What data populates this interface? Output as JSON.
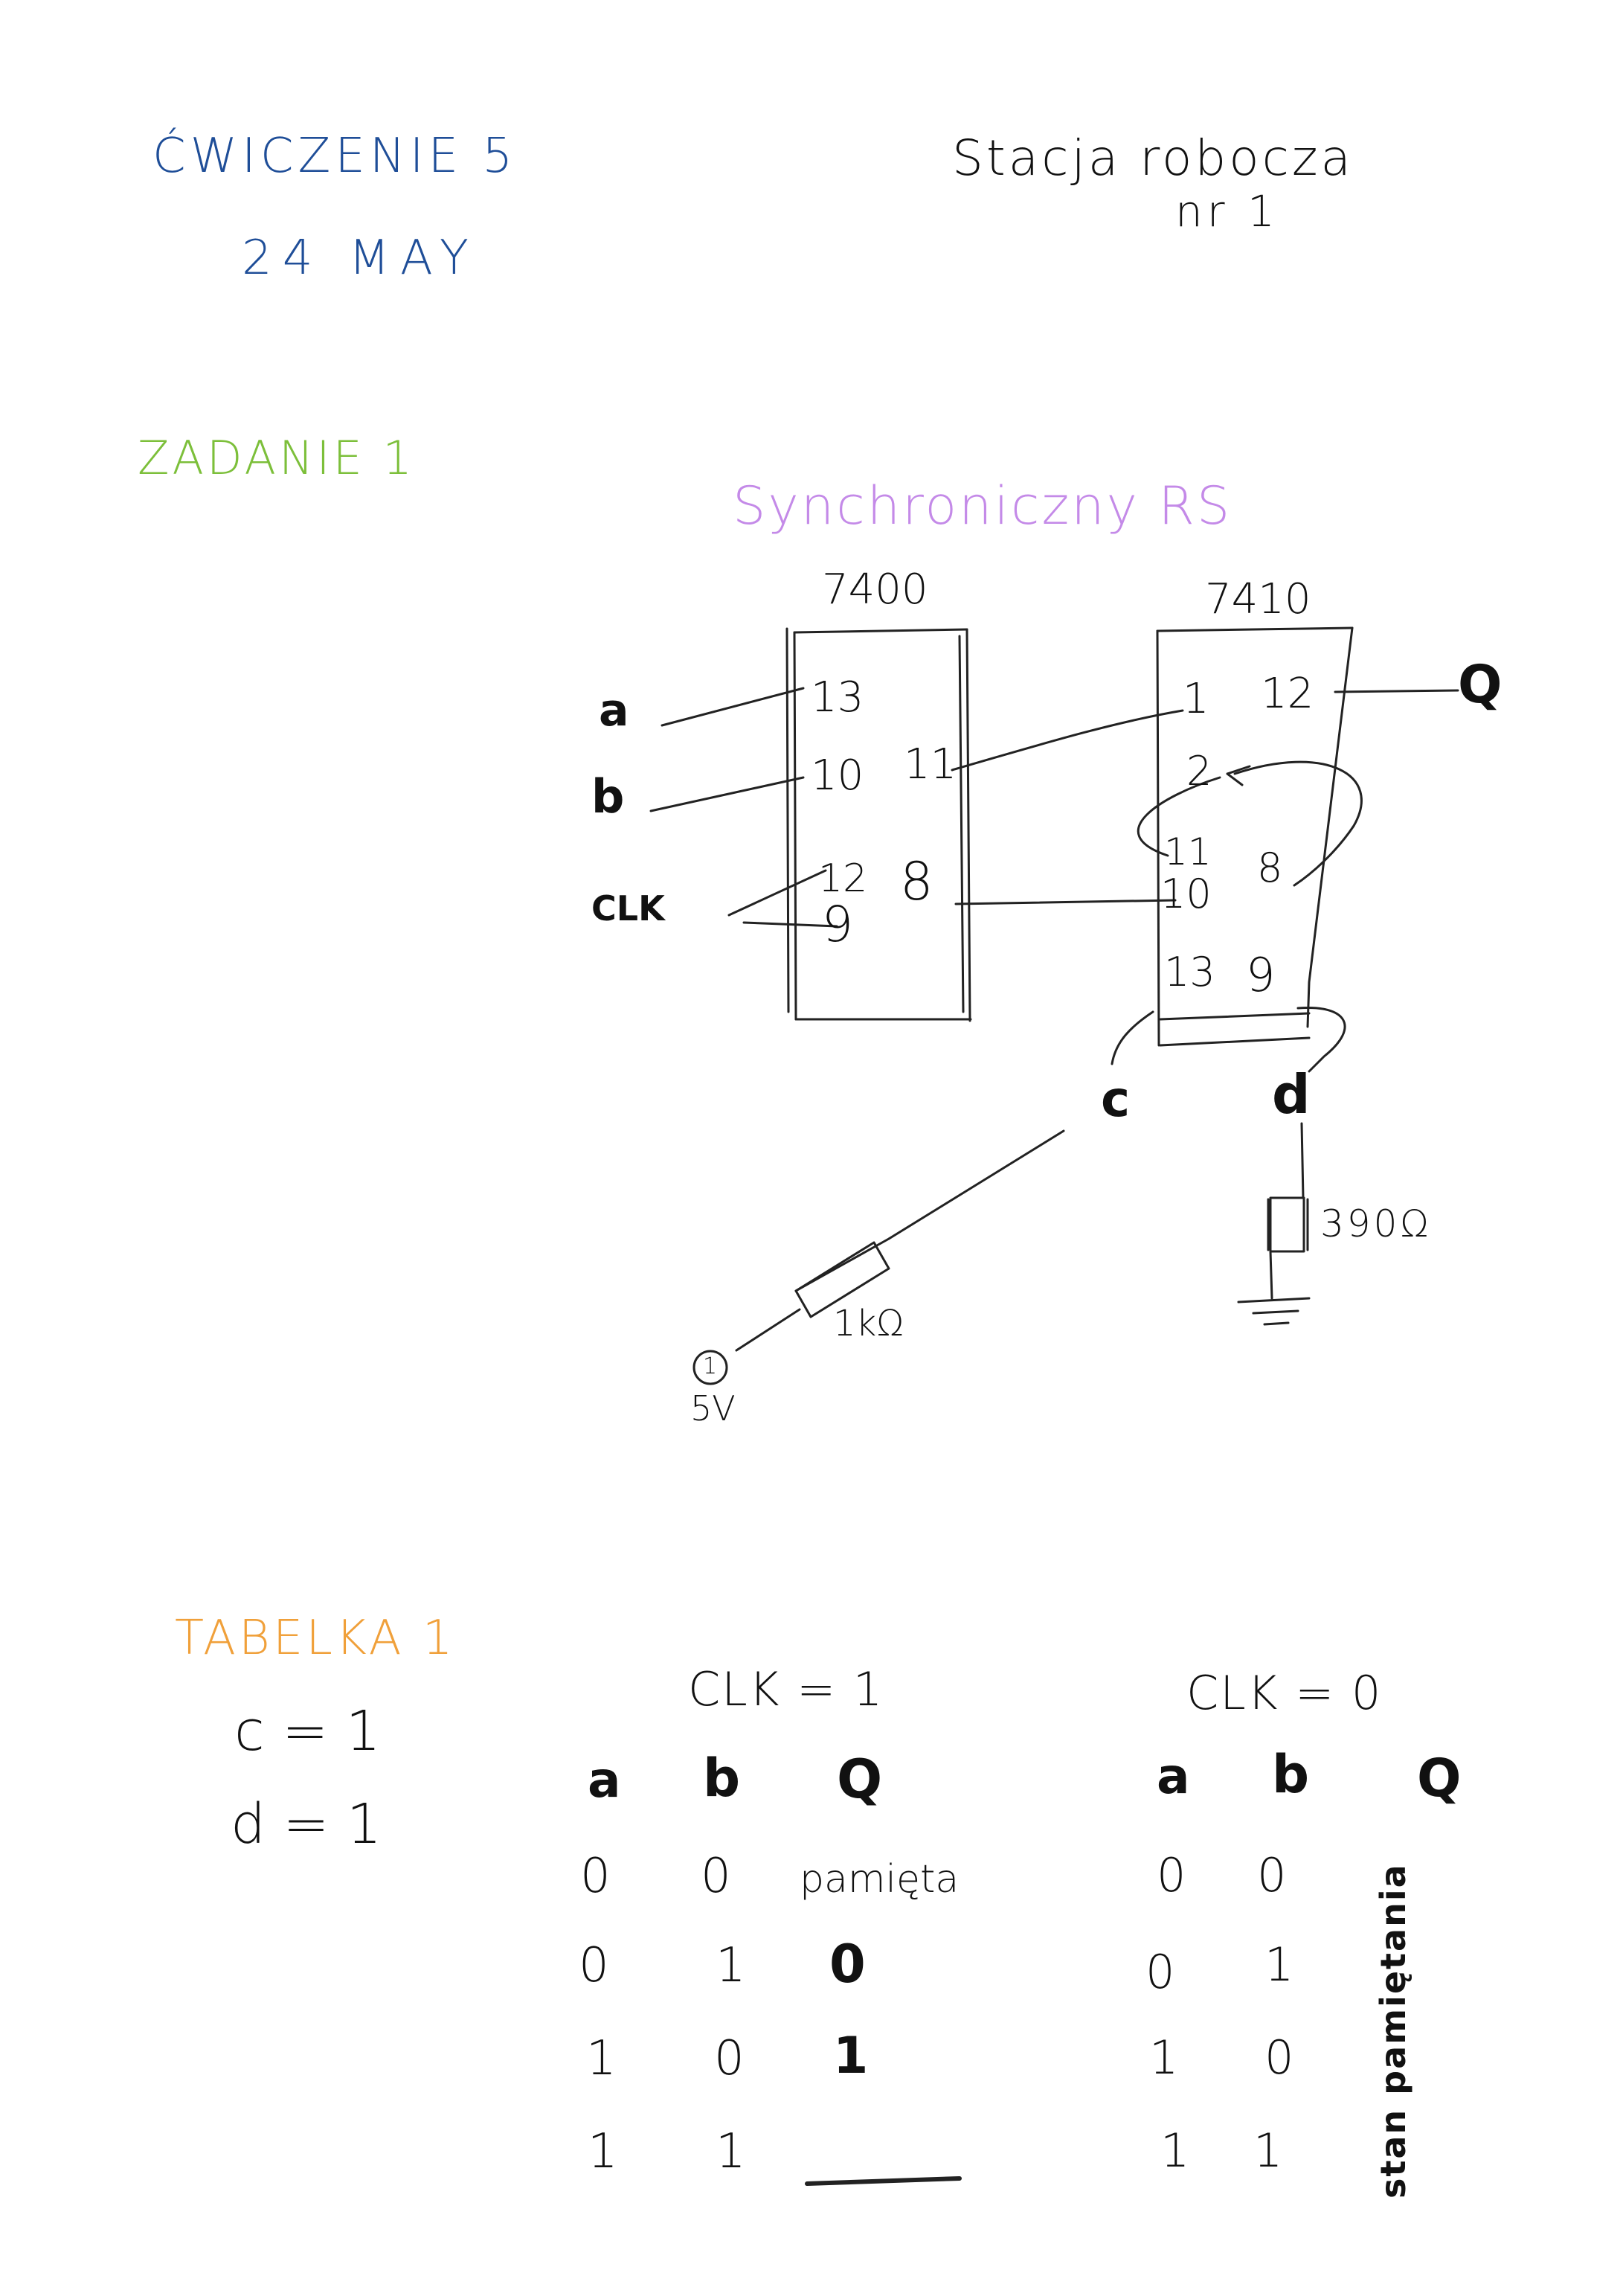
{
  "header": {
    "exercise": "ĆWICZENIE 5",
    "date": "24 MAY",
    "station_line1": "Stacja robocza",
    "station_line2": "nr 1"
  },
  "task": {
    "title": "ZADANIE 1",
    "circuit_title": "Synchroniczny RS"
  },
  "circuit": {
    "chip_left": {
      "name": "7400",
      "pins": [
        "13",
        "10",
        "11",
        "12",
        "8",
        "9"
      ]
    },
    "chip_right": {
      "name": "7410",
      "pins": [
        "1",
        "12",
        "2",
        "11",
        "8",
        "10",
        "13",
        "9"
      ]
    },
    "inputs": [
      "a",
      "b",
      "CLK"
    ],
    "output": "Q",
    "nodes": [
      "c",
      "d"
    ],
    "resistor_1": "1kΩ",
    "resistor_2": "390Ω",
    "source_symbol": "1",
    "source_voltage": "5V"
  },
  "table": {
    "title": "TABELKA 1",
    "cond_c": "c = 1",
    "cond_d": "d = 1",
    "left": {
      "header": "CLK = 1",
      "columns": [
        "a",
        "b",
        "Q"
      ],
      "rows": [
        [
          "0",
          "0",
          "pamięta"
        ],
        [
          "0",
          "1",
          "0"
        ],
        [
          "1",
          "0",
          "1"
        ],
        [
          "1",
          "1",
          "——"
        ]
      ]
    },
    "right": {
      "header": "CLK = 0",
      "columns": [
        "a",
        "b",
        "Q"
      ],
      "rows": [
        [
          "0",
          "0"
        ],
        [
          "0",
          "1"
        ],
        [
          "1",
          "0"
        ],
        [
          "1",
          "1"
        ]
      ],
      "q_note": "stan pamiętania"
    }
  }
}
